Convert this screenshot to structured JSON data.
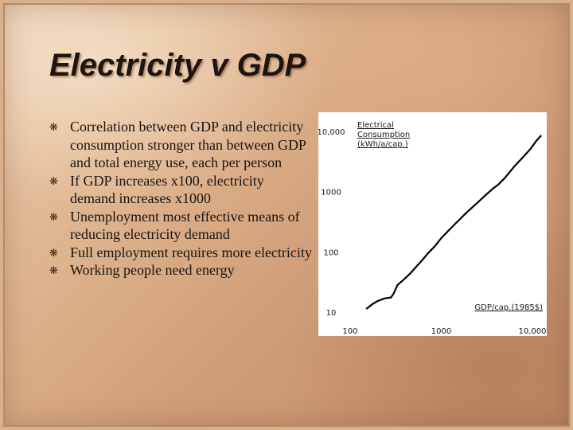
{
  "slide": {
    "title": "Electricity v GDP",
    "bullets": [
      "Correlation between GDP and electricity consumption stronger than between GDP and total energy use, each per person",
      "If GDP increases x100, electricity demand increases x1000",
      "Unemployment most effective means of reducing electricity demand",
      "Full employment requires more electricity",
      "Working people need energy"
    ],
    "bullet_icon": "sparkle-bullet-icon"
  },
  "chart_data": {
    "type": "line",
    "title": "",
    "ylabel_lines": [
      "Electrical",
      "Consumption",
      "(kWh/a/cap.)"
    ],
    "xlabel": "GDP/cap.(1985$)",
    "x_scale": "log",
    "y_scale": "log",
    "xlim": [
      100,
      13000
    ],
    "ylim": [
      10,
      10000
    ],
    "x_ticks": [
      {
        "value": 100,
        "label": "100"
      },
      {
        "value": 1000,
        "label": "1000"
      },
      {
        "value": 10000,
        "label": "10,000"
      }
    ],
    "y_ticks": [
      {
        "value": 10000,
        "label": "10,000"
      },
      {
        "value": 1000,
        "label": "1000"
      },
      {
        "value": 100,
        "label": "100"
      },
      {
        "value": 10,
        "label": "10"
      }
    ],
    "grid": false,
    "series": [
      {
        "color": "#000000",
        "x": [
          150,
          175,
          200,
          240,
          280,
          300,
          330,
          380,
          450,
          530,
          620,
          720,
          850,
          1000,
          1200,
          1500,
          1900,
          2400,
          3000,
          3700,
          4200,
          5000,
          6300,
          7900,
          9500,
          11000,
          12500
        ],
        "y": [
          10,
          12,
          13.5,
          15,
          15.5,
          18,
          25,
          30,
          38,
          50,
          65,
          85,
          110,
          150,
          200,
          280,
          400,
          550,
          750,
          1000,
          1150,
          1500,
          2300,
          3300,
          4500,
          6100,
          7600
        ]
      }
    ]
  }
}
